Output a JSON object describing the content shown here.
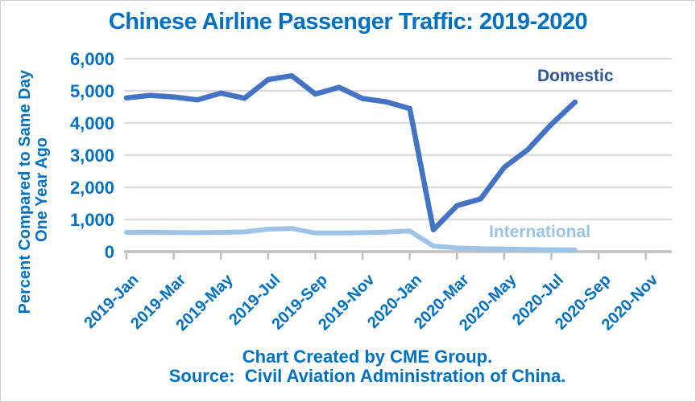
{
  "title": "Chinese Airline Passenger Traffic: 2019-2020",
  "footer": {
    "line1": "Chart Created by CME Group.",
    "line2": "Source:  Civil Aviation Administration of China."
  },
  "colors": {
    "title_text": "#0070C0",
    "axis_text": "#0070C0",
    "gridline": "#D9D9D9",
    "axis_line": "#BFBFBF",
    "domestic_line": "#4472C4",
    "domestic_label": "#2F5597",
    "international_line": "#9DC3E6",
    "international_label": "#9DC3E6"
  },
  "chart_data": {
    "type": "line",
    "title": "Chinese Airline Passenger Traffic: 2019-2020",
    "ylabel_lines": [
      "Percent Compared to Same Day",
      "One Year Ago"
    ],
    "ylim": [
      0,
      6000
    ],
    "y_ticks": [
      0,
      1000,
      2000,
      3000,
      4000,
      5000,
      6000
    ],
    "y_tick_labels": [
      "0",
      "1,000",
      "2,000",
      "3,000",
      "4,000",
      "5,000",
      "6,000"
    ],
    "x_tick_labels": [
      "2019-Jan",
      "2019-Mar",
      "2019-May",
      "2019-Jul",
      "2019-Sep",
      "2019-Nov",
      "2020-Jan",
      "2020-Mar",
      "2020-May",
      "2020-Jul",
      "2020-Sep",
      "2020-Nov"
    ],
    "x_tick_interval_months": 2,
    "x_axis_total_months": 24,
    "grid": "horizontal",
    "legend": "inline-series-labels",
    "months": [
      "2019-Jan",
      "2019-Feb",
      "2019-Mar",
      "2019-Apr",
      "2019-May",
      "2019-Jun",
      "2019-Jul",
      "2019-Aug",
      "2019-Sep",
      "2019-Oct",
      "2019-Nov",
      "2019-Dec",
      "2020-Jan",
      "2020-Feb",
      "2020-Mar",
      "2020-Apr",
      "2020-May",
      "2020-Jun",
      "2020-Jul",
      "2020-Aug"
    ],
    "series": [
      {
        "name": "Domestic",
        "color": "#4472C4",
        "label_color": "#2F5597",
        "values": [
          4780,
          4860,
          4810,
          4720,
          4930,
          4770,
          5350,
          5470,
          4900,
          5110,
          4760,
          4660,
          4450,
          680,
          1430,
          1640,
          2620,
          3170,
          3960,
          4650
        ]
      },
      {
        "name": "International",
        "color": "#9DC3E6",
        "label_color": "#9DC3E6",
        "values": [
          600,
          605,
          595,
          590,
          600,
          615,
          700,
          720,
          580,
          580,
          590,
          605,
          645,
          175,
          115,
          90,
          80,
          70,
          60,
          55
        ]
      }
    ]
  }
}
